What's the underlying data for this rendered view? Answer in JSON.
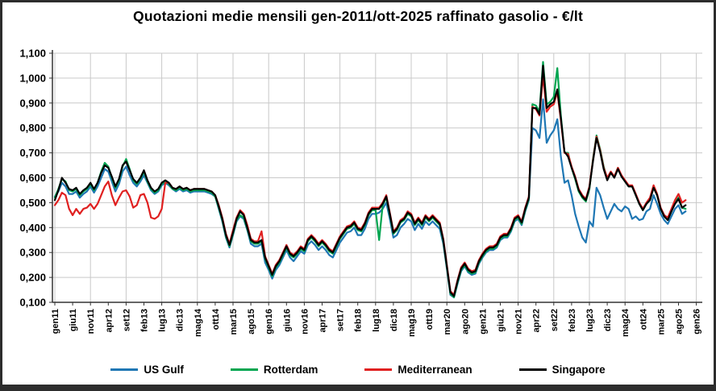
{
  "title": "Quotazioni medie mensili gen-2011/ott-2025 raffinato gasolio - €/lt",
  "chart_data": {
    "type": "line",
    "title": "Quotazioni medie mensili gen-2011/ott-2025 raffinato gasolio - €/lt",
    "y_unit": "€/lt",
    "x_frequency": "monthly",
    "x_range": [
      "gen 2011",
      "ott 2025"
    ],
    "ylim": [
      0.1,
      1.1
    ],
    "y_step": 0.1,
    "grid": true,
    "legend_position": "bottom",
    "y_tick_labels": [
      "1,100",
      "1,000",
      "0,900",
      "0,800",
      "0,700",
      "0,600",
      "0,500",
      "0,400",
      "0,300",
      "0,200",
      "0,100"
    ],
    "x_tick_labels": [
      "gen11",
      "giu11",
      "nov11",
      "apr12",
      "set12",
      "feb13",
      "lug13",
      "dic13",
      "mag14",
      "ott14",
      "mar15",
      "ago15",
      "gen16",
      "giu16",
      "nov16",
      "apr17",
      "set17",
      "feb18",
      "lug18",
      "dic18",
      "mag19",
      "ott19",
      "mar20",
      "ago20",
      "gen21",
      "giu21",
      "nov21",
      "apr22",
      "set22",
      "feb23",
      "lug23",
      "dic23",
      "mag24",
      "ott24",
      "mar25",
      "ago25",
      "gen26"
    ],
    "x_tick_step_months": 5,
    "series": [
      {
        "name": "US Gulf",
        "color": "#1F77B4",
        "values": [
          0.525,
          0.545,
          0.58,
          0.565,
          0.535,
          0.535,
          0.545,
          0.52,
          0.535,
          0.545,
          0.565,
          0.54,
          0.565,
          0.6,
          0.635,
          0.625,
          0.585,
          0.545,
          0.575,
          0.625,
          0.645,
          0.61,
          0.58,
          0.565,
          0.585,
          0.61,
          0.58,
          0.55,
          0.535,
          0.545,
          0.57,
          0.58,
          0.57,
          0.555,
          0.545,
          0.555,
          0.545,
          0.55,
          0.54,
          0.545,
          0.545,
          0.545,
          0.545,
          0.54,
          0.535,
          0.525,
          0.475,
          0.425,
          0.36,
          0.32,
          0.37,
          0.425,
          0.445,
          0.435,
          0.39,
          0.335,
          0.325,
          0.325,
          0.335,
          0.26,
          0.23,
          0.195,
          0.23,
          0.25,
          0.28,
          0.31,
          0.28,
          0.265,
          0.285,
          0.305,
          0.295,
          0.33,
          0.345,
          0.33,
          0.31,
          0.325,
          0.31,
          0.29,
          0.28,
          0.31,
          0.34,
          0.36,
          0.38,
          0.385,
          0.4,
          0.37,
          0.37,
          0.395,
          0.435,
          0.455,
          0.455,
          0.46,
          0.475,
          0.5,
          0.435,
          0.36,
          0.37,
          0.4,
          0.415,
          0.435,
          0.425,
          0.39,
          0.415,
          0.395,
          0.425,
          0.41,
          0.425,
          0.41,
          0.395,
          0.335,
          0.235,
          0.13,
          0.12,
          0.175,
          0.225,
          0.245,
          0.22,
          0.21,
          0.215,
          0.255,
          0.28,
          0.3,
          0.31,
          0.31,
          0.32,
          0.35,
          0.36,
          0.36,
          0.385,
          0.425,
          0.435,
          0.41,
          0.465,
          0.51,
          0.8,
          0.79,
          0.76,
          0.915,
          0.74,
          0.77,
          0.79,
          0.835,
          0.685,
          0.58,
          0.59,
          0.53,
          0.455,
          0.405,
          0.36,
          0.34,
          0.425,
          0.405,
          0.56,
          0.53,
          0.48,
          0.435,
          0.465,
          0.495,
          0.475,
          0.465,
          0.485,
          0.475,
          0.435,
          0.445,
          0.43,
          0.435,
          0.465,
          0.475,
          0.53,
          0.495,
          0.455,
          0.43,
          0.415,
          0.445,
          0.475,
          0.49,
          0.455,
          0.465
        ]
      },
      {
        "name": "Rotterdam",
        "color": "#00A550",
        "values": [
          0.52,
          0.555,
          0.595,
          0.585,
          0.55,
          0.545,
          0.555,
          0.53,
          0.545,
          0.555,
          0.575,
          0.55,
          0.58,
          0.625,
          0.66,
          0.645,
          0.6,
          0.56,
          0.59,
          0.645,
          0.675,
          0.635,
          0.59,
          0.575,
          0.595,
          0.625,
          0.585,
          0.555,
          0.54,
          0.55,
          0.575,
          0.585,
          0.575,
          0.555,
          0.55,
          0.56,
          0.55,
          0.555,
          0.545,
          0.55,
          0.55,
          0.55,
          0.55,
          0.545,
          0.54,
          0.525,
          0.48,
          0.43,
          0.365,
          0.325,
          0.375,
          0.43,
          0.45,
          0.44,
          0.395,
          0.345,
          0.335,
          0.335,
          0.345,
          0.275,
          0.24,
          0.205,
          0.24,
          0.26,
          0.29,
          0.32,
          0.29,
          0.28,
          0.295,
          0.315,
          0.305,
          0.345,
          0.36,
          0.345,
          0.325,
          0.34,
          0.325,
          0.305,
          0.295,
          0.325,
          0.355,
          0.375,
          0.395,
          0.4,
          0.415,
          0.39,
          0.385,
          0.41,
          0.45,
          0.47,
          0.47,
          0.35,
          0.49,
          0.52,
          0.45,
          0.375,
          0.39,
          0.42,
          0.43,
          0.455,
          0.445,
          0.41,
          0.43,
          0.41,
          0.44,
          0.425,
          0.44,
          0.425,
          0.41,
          0.345,
          0.24,
          0.135,
          0.12,
          0.18,
          0.23,
          0.25,
          0.225,
          0.215,
          0.22,
          0.26,
          0.285,
          0.305,
          0.315,
          0.315,
          0.325,
          0.355,
          0.365,
          0.365,
          0.39,
          0.43,
          0.44,
          0.415,
          0.47,
          0.515,
          0.895,
          0.89,
          0.865,
          1.065,
          0.895,
          0.905,
          0.925,
          1.04,
          0.85,
          0.7,
          0.7,
          0.64,
          0.595,
          0.545,
          0.52,
          0.505,
          0.555,
          0.675,
          0.77,
          0.715,
          0.645,
          0.595,
          0.62,
          0.605,
          0.64,
          0.605,
          0.585,
          0.565,
          0.565,
          0.53,
          0.495,
          0.47,
          0.495,
          0.51,
          0.565,
          0.53,
          0.475,
          0.445,
          0.43,
          0.465,
          0.5,
          0.52,
          0.48,
          0.475
        ]
      },
      {
        "name": "Mediterranean",
        "color": "#E02020",
        "values": [
          0.49,
          0.51,
          0.54,
          0.53,
          0.475,
          0.45,
          0.475,
          0.455,
          0.475,
          0.48,
          0.495,
          0.475,
          0.495,
          0.53,
          0.565,
          0.585,
          0.53,
          0.49,
          0.52,
          0.545,
          0.55,
          0.525,
          0.48,
          0.49,
          0.53,
          0.535,
          0.5,
          0.44,
          0.435,
          0.445,
          0.475,
          0.58,
          0.58,
          0.56,
          0.555,
          0.565,
          0.555,
          0.56,
          0.55,
          0.555,
          0.555,
          0.555,
          0.555,
          0.55,
          0.545,
          0.53,
          0.49,
          0.44,
          0.375,
          0.335,
          0.39,
          0.44,
          0.47,
          0.455,
          0.41,
          0.355,
          0.345,
          0.345,
          0.385,
          0.285,
          0.25,
          0.215,
          0.25,
          0.27,
          0.3,
          0.33,
          0.3,
          0.29,
          0.305,
          0.325,
          0.315,
          0.355,
          0.37,
          0.355,
          0.335,
          0.35,
          0.335,
          0.315,
          0.305,
          0.335,
          0.365,
          0.385,
          0.405,
          0.41,
          0.425,
          0.4,
          0.395,
          0.42,
          0.46,
          0.48,
          0.48,
          0.48,
          0.5,
          0.53,
          0.46,
          0.385,
          0.4,
          0.43,
          0.44,
          0.465,
          0.455,
          0.42,
          0.44,
          0.42,
          0.45,
          0.435,
          0.45,
          0.435,
          0.42,
          0.355,
          0.25,
          0.145,
          0.13,
          0.19,
          0.24,
          0.26,
          0.235,
          0.225,
          0.23,
          0.27,
          0.295,
          0.315,
          0.325,
          0.325,
          0.335,
          0.365,
          0.375,
          0.375,
          0.4,
          0.44,
          0.45,
          0.425,
          0.48,
          0.525,
          0.885,
          0.875,
          0.85,
          1.01,
          0.865,
          0.885,
          0.895,
          0.945,
          0.83,
          0.7,
          0.695,
          0.645,
          0.605,
          0.555,
          0.53,
          0.515,
          0.565,
          0.67,
          0.765,
          0.71,
          0.64,
          0.6,
          0.625,
          0.605,
          0.64,
          0.61,
          0.59,
          0.57,
          0.57,
          0.535,
          0.5,
          0.475,
          0.5,
          0.52,
          0.57,
          0.535,
          0.48,
          0.45,
          0.44,
          0.475,
          0.51,
          0.535,
          0.5,
          0.51
        ]
      },
      {
        "name": "Singapore",
        "color": "#000000",
        "values": [
          0.51,
          0.55,
          0.6,
          0.58,
          0.555,
          0.55,
          0.56,
          0.535,
          0.55,
          0.56,
          0.58,
          0.555,
          0.58,
          0.62,
          0.65,
          0.64,
          0.605,
          0.565,
          0.595,
          0.65,
          0.665,
          0.63,
          0.595,
          0.58,
          0.6,
          0.63,
          0.59,
          0.56,
          0.545,
          0.555,
          0.58,
          0.59,
          0.58,
          0.56,
          0.555,
          0.565,
          0.555,
          0.56,
          0.55,
          0.555,
          0.555,
          0.555,
          0.555,
          0.55,
          0.545,
          0.53,
          0.485,
          0.435,
          0.37,
          0.33,
          0.38,
          0.435,
          0.465,
          0.45,
          0.4,
          0.35,
          0.34,
          0.34,
          0.35,
          0.28,
          0.245,
          0.21,
          0.245,
          0.265,
          0.295,
          0.325,
          0.295,
          0.285,
          0.3,
          0.32,
          0.31,
          0.35,
          0.365,
          0.35,
          0.33,
          0.345,
          0.33,
          0.31,
          0.3,
          0.33,
          0.36,
          0.38,
          0.4,
          0.405,
          0.42,
          0.395,
          0.39,
          0.415,
          0.455,
          0.475,
          0.475,
          0.475,
          0.495,
          0.525,
          0.455,
          0.38,
          0.395,
          0.425,
          0.435,
          0.46,
          0.45,
          0.415,
          0.435,
          0.415,
          0.445,
          0.43,
          0.445,
          0.43,
          0.415,
          0.35,
          0.245,
          0.14,
          0.125,
          0.185,
          0.235,
          0.255,
          0.23,
          0.22,
          0.225,
          0.265,
          0.29,
          0.31,
          0.32,
          0.32,
          0.33,
          0.36,
          0.37,
          0.37,
          0.395,
          0.435,
          0.445,
          0.42,
          0.475,
          0.52,
          0.88,
          0.88,
          0.855,
          1.05,
          0.88,
          0.895,
          0.905,
          0.955,
          0.84,
          0.705,
          0.685,
          0.64,
          0.6,
          0.55,
          0.525,
          0.51,
          0.56,
          0.665,
          0.76,
          0.705,
          0.635,
          0.59,
          0.62,
          0.6,
          0.635,
          0.605,
          0.585,
          0.565,
          0.565,
          0.53,
          0.495,
          0.47,
          0.495,
          0.51,
          0.56,
          0.53,
          0.475,
          0.445,
          0.43,
          0.465,
          0.495,
          0.515,
          0.48,
          0.49
        ]
      }
    ],
    "colors": {
      "grid": "#C9C9C9",
      "axis": "#333333",
      "background": "#FFFFFF",
      "frame": "#2D2D2D"
    }
  }
}
